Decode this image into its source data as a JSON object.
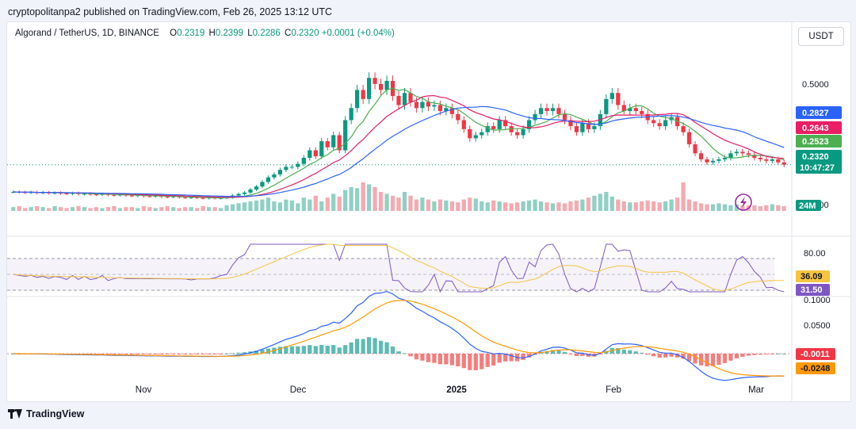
{
  "header": {
    "text": "cryptopolitanpa2 published on TradingView.com, Feb 26, 2025 13:12 UTC"
  },
  "legend": {
    "symbol": "Algorand / TetherUS, 1D, BINANCE",
    "o_label": "O",
    "o": "0.2319",
    "h_label": "H",
    "h": "0.2399",
    "l_label": "L",
    "l": "0.2286",
    "c_label": "C",
    "c": "0.2320",
    "change": "+0.0001 (+0.04%)"
  },
  "currency": "USDT",
  "footer": {
    "brand": "TradingView"
  },
  "colors": {
    "up": "#089981",
    "down": "#f23645",
    "ma_fast": "#4caf50",
    "ma_mid": "#e91e63",
    "ma_slow": "#2962ff",
    "rsi": "#7e57c2",
    "rsi_ma": "#f5c542",
    "macd": "#2962ff",
    "signal": "#ff9800",
    "background": "#ffffff"
  },
  "chart_data": [
    {
      "type": "candlestick",
      "x_ticks": [
        "Nov",
        "Dec",
        "2025",
        "Feb",
        "Mar"
      ],
      "y_ticks": [
        "0.5000",
        "0.4000",
        "0.1000"
      ],
      "y_tick_values": [
        0.5,
        0.4,
        0.1
      ],
      "last_price": 0.232,
      "countdown": "10:47:27",
      "ma_labels": [
        {
          "value": "0.2827",
          "series": "ma_slow"
        },
        {
          "value": "0.2643",
          "series": "ma_mid"
        },
        {
          "value": "0.2523",
          "series": "ma_fast"
        }
      ],
      "volume_label": "24M",
      "closes": [
        0.142,
        0.141,
        0.14,
        0.141,
        0.139,
        0.14,
        0.138,
        0.139,
        0.137,
        0.136,
        0.138,
        0.135,
        0.136,
        0.134,
        0.133,
        0.135,
        0.132,
        0.131,
        0.133,
        0.13,
        0.129,
        0.131,
        0.128,
        0.127,
        0.129,
        0.126,
        0.125,
        0.127,
        0.124,
        0.123,
        0.124,
        0.122,
        0.121,
        0.123,
        0.121,
        0.122,
        0.124,
        0.13,
        0.135,
        0.14,
        0.15,
        0.16,
        0.175,
        0.19,
        0.2,
        0.215,
        0.225,
        0.225,
        0.235,
        0.255,
        0.28,
        0.26,
        0.31,
        0.29,
        0.33,
        0.28,
        0.38,
        0.42,
        0.48,
        0.45,
        0.52,
        0.5,
        0.48,
        0.51,
        0.46,
        0.43,
        0.47,
        0.44,
        0.42,
        0.44,
        0.425,
        0.43,
        0.41,
        0.42,
        0.4,
        0.38,
        0.35,
        0.32,
        0.33,
        0.34,
        0.36,
        0.35,
        0.38,
        0.36,
        0.34,
        0.33,
        0.35,
        0.38,
        0.4,
        0.42,
        0.41,
        0.42,
        0.4,
        0.38,
        0.36,
        0.34,
        0.37,
        0.35,
        0.36,
        0.4,
        0.45,
        0.47,
        0.43,
        0.41,
        0.42,
        0.41,
        0.4,
        0.38,
        0.37,
        0.36,
        0.38,
        0.39,
        0.36,
        0.34,
        0.3,
        0.27,
        0.25,
        0.24,
        0.245,
        0.25,
        0.255,
        0.27,
        0.275,
        0.27,
        0.265,
        0.255,
        0.25,
        0.245,
        0.25,
        0.24,
        0.232
      ],
      "volumes": [
        4,
        5,
        3,
        4,
        5,
        4,
        3,
        5,
        4,
        3,
        4,
        5,
        4,
        3,
        4,
        3,
        4,
        5,
        3,
        4,
        4,
        3,
        5,
        4,
        3,
        4,
        5,
        4,
        3,
        4,
        4,
        3,
        5,
        4,
        4,
        3,
        6,
        7,
        8,
        9,
        10,
        11,
        12,
        14,
        10,
        9,
        12,
        11,
        8,
        14,
        12,
        16,
        10,
        14,
        18,
        15,
        22,
        25,
        24,
        30,
        28,
        25,
        20,
        18,
        16,
        14,
        20,
        16,
        12,
        14,
        12,
        10,
        12,
        11,
        10,
        9,
        12,
        14,
        13,
        10,
        9,
        11,
        10,
        9,
        8,
        9,
        10,
        11,
        12,
        10,
        9,
        8,
        9,
        8,
        10,
        11,
        12,
        14,
        16,
        18,
        20,
        15,
        12,
        10,
        9,
        9,
        10,
        11,
        10,
        9,
        10,
        12,
        14,
        30,
        12,
        10,
        8,
        7,
        7,
        8,
        7,
        6,
        7,
        6,
        6,
        6,
        5,
        6,
        7,
        6,
        5
      ]
    },
    {
      "type": "line",
      "name": "RSI",
      "y_ticks": [
        "80.00",
        "0.1000"
      ],
      "labels": [
        "36.09",
        "31.50"
      ],
      "rsi_value": 31.5,
      "rsi_ma_value": 36.09
    },
    {
      "type": "bar",
      "name": "MACD",
      "y_ticks": [
        "0.0500"
      ],
      "labels": [
        "-0.0011",
        "-0.0248"
      ]
    }
  ]
}
